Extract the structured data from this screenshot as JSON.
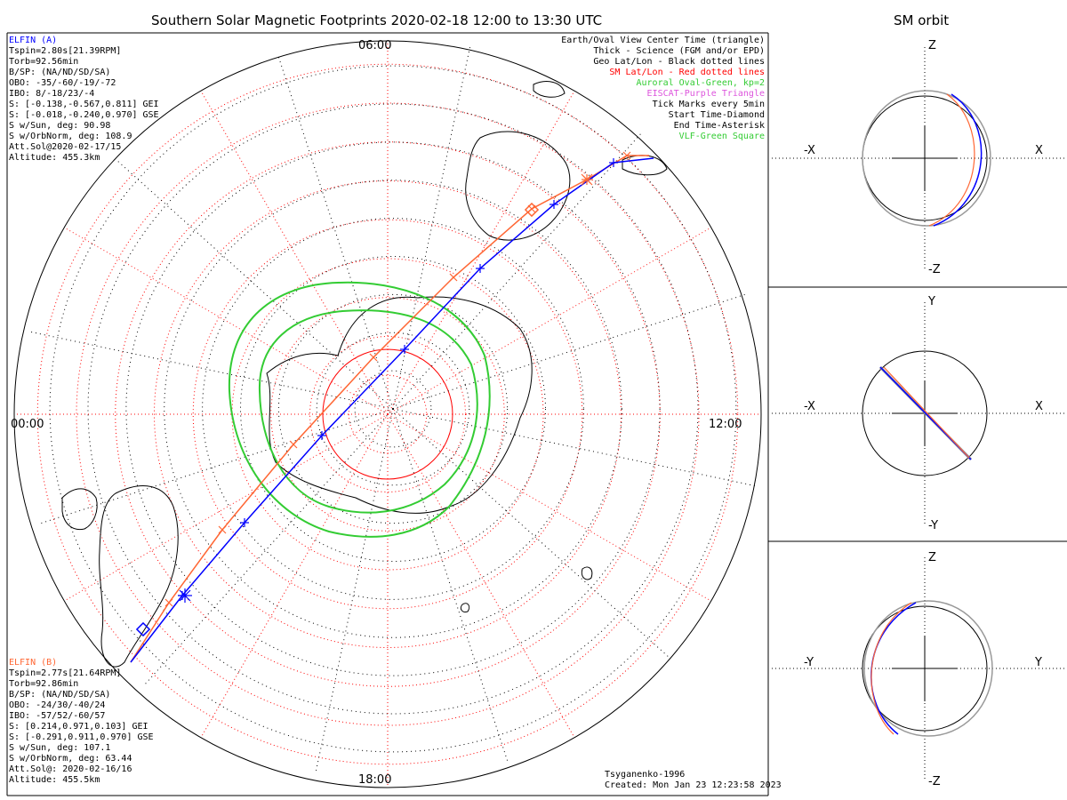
{
  "header": {
    "main_title": "Southern Solar Magnetic Footprints 2020-02-18 12:00 to 13:30 UTC",
    "orbit_title": "SM orbit"
  },
  "elfin_a": {
    "name": "ELFIN (A)",
    "color": "#0000ff",
    "lines": [
      "Tspin=2.80s[21.39RPM]",
      "Torb=92.56min",
      "B/SP: (NA/ND/SD/SA)",
      "OBO: -35/-60/-19/-72",
      "IBO: 8/-18/23/-4",
      "S: [-0.138,-0.567,0.811] GEI",
      "S: [-0.018,-0.240,0.970] GSE",
      "S w/Sun, deg: 90.98",
      "S w/OrbNorm, deg: 108.9",
      "Att.Sol@2020-02-17/15",
      "Altitude: 455.3km"
    ]
  },
  "elfin_b": {
    "name": "ELFIN (B)",
    "color": "#ff6633",
    "lines": [
      "Tspin=2.77s[21.64RPM]",
      "Torb=92.86min",
      "B/SP: (NA/ND/SD/SA)",
      "OBO: -24/30/-40/24",
      "IBO: -57/52/-60/57",
      "S: [0.214,0.971,0.103] GEI",
      "S: [-0.291,0.911,0.970] GSE",
      "S w/Sun, deg: 107.1",
      "S w/OrbNorm, deg: 63.44",
      "Att.Sol@: 2020-02-16/16",
      "Altitude: 455.5km"
    ]
  },
  "legend": [
    {
      "text": "Earth/Oval View Center Time (triangle)",
      "color": "#000000"
    },
    {
      "text": "Thick - Science (FGM and/or EPD)",
      "color": "#000000"
    },
    {
      "text": "Geo Lat/Lon - Black dotted lines",
      "color": "#000000"
    },
    {
      "text": "SM Lat/Lon - Red dotted lines",
      "color": "#ff0000"
    },
    {
      "text": "Auroral Oval-Green, kp=2",
      "color": "#33cc33"
    },
    {
      "text": "EISCAT-Purple Triangle",
      "color": "#dd55dd"
    },
    {
      "text": "Tick Marks every 5min",
      "color": "#000000"
    },
    {
      "text": "Start Time-Diamond",
      "color": "#000000"
    },
    {
      "text": "End Time-Asterisk",
      "color": "#000000"
    },
    {
      "text": "VLF-Green Square",
      "color": "#33cc33"
    }
  ],
  "time_labels": {
    "top": "06:00",
    "left": "00:00",
    "right": "12:00",
    "bottom": "18:00"
  },
  "footer": {
    "model": "Tsyganenko-1996",
    "created": "Created: Mon Jan 23 12:23:58 2023"
  },
  "orbit_panels": [
    {
      "up": "Z",
      "down": "-Z",
      "left": "-X",
      "right": "X"
    },
    {
      "up": "Y",
      "down": "-Y",
      "left": "-X",
      "right": "X"
    },
    {
      "up": "Z",
      "down": "-Z",
      "left": "-Y",
      "right": "Y"
    }
  ],
  "colors": {
    "elfin_a": "#0000ff",
    "elfin_b": "#ff6633",
    "oval": "#33cc33",
    "sm_grid": "#ff0000",
    "geo_grid": "#000000",
    "orbit_ref": "#999999"
  },
  "chart_data": {
    "type": "polar footprint map",
    "title": "Southern Solar Magnetic Footprints 2020-02-18 12:00 to 13:30 UTC",
    "magnetic_local_time_labels": [
      "06:00",
      "00:00",
      "12:00",
      "18:00"
    ],
    "series": [
      {
        "name": "ELFIN (A)",
        "color": "#0000ff"
      },
      {
        "name": "ELFIN (B)",
        "color": "#ff6633"
      }
    ]
  }
}
